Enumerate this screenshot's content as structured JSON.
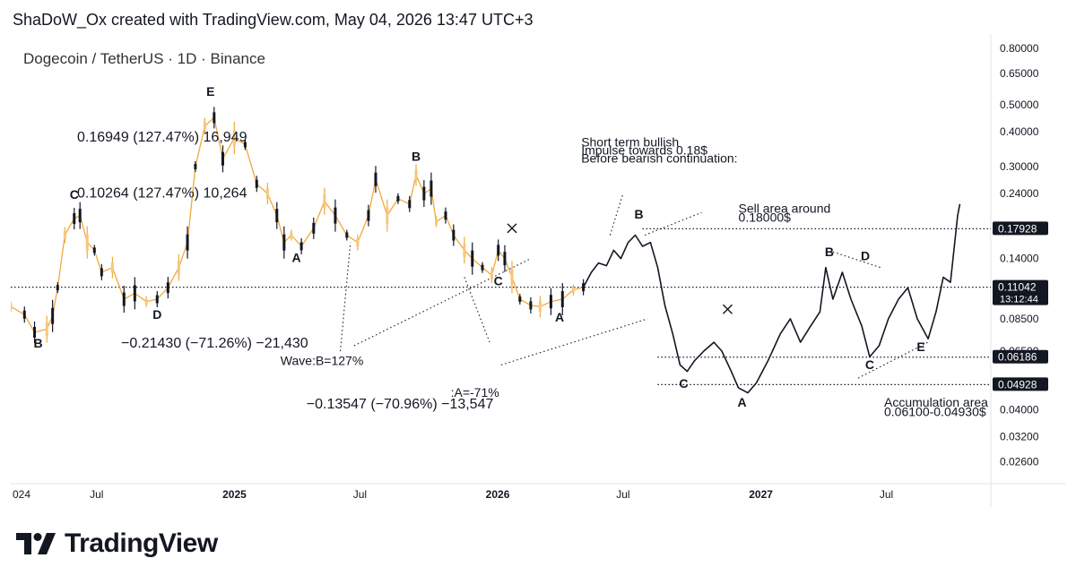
{
  "header": {
    "caption": "ShaDoW_Ox created with TradingView.com, May 04, 2026 13:47 UTC+3"
  },
  "chart_data": {
    "type": "line",
    "title": "Dogecoin / TetherUS · 1D · Binance",
    "y_scale": "log",
    "ylim": [
      0.022,
      0.9
    ],
    "xlim": [
      "2024-03-01",
      "2027-11-10"
    ],
    "x_tick_labels": [
      {
        "label": "024",
        "date": "2024-03-01"
      },
      {
        "label": "Jul",
        "date": "2024-07-01"
      },
      {
        "label": "2025",
        "date": "2025-01-01"
      },
      {
        "label": "Jul",
        "date": "2025-07-01"
      },
      {
        "label": "2026",
        "date": "2026-01-01"
      },
      {
        "label": "Jul",
        "date": "2026-07-01"
      },
      {
        "label": "2027",
        "date": "2027-01-01"
      },
      {
        "label": "Jul",
        "date": "2027-07-01"
      }
    ],
    "y_tick_labels": [
      "0.80000",
      "0.65000",
      "0.50000",
      "0.40000",
      "0.30000",
      "0.24000",
      "0.14000",
      "0.08500",
      "0.06500",
      "0.04000",
      "0.03200",
      "0.02600"
    ],
    "price_badges": [
      {
        "label": "0.17928",
        "value": 0.17928
      },
      {
        "label": "0.11042",
        "value": 0.11042,
        "sub": "13:12:44"
      },
      {
        "label": "0.06186",
        "value": 0.06186
      },
      {
        "label": "0.04928",
        "value": 0.04928
      }
    ],
    "horizontal_lines": [
      0.17928,
      0.11042,
      0.06186,
      0.04928
    ],
    "series": [
      {
        "kind": "historical candles",
        "color": "#f0a93b",
        "points": [
          [
            "2024-03-01",
            0.094
          ],
          [
            "2024-03-20",
            0.088
          ],
          [
            "2024-04-03",
            0.076
          ],
          [
            "2024-04-20",
            0.078
          ],
          [
            "2024-04-28",
            0.087
          ],
          [
            "2024-05-05",
            0.11
          ],
          [
            "2024-05-15",
            0.17
          ],
          [
            "2024-05-28",
            0.195
          ],
          [
            "2024-06-05",
            0.2
          ],
          [
            "2024-06-15",
            0.16
          ],
          [
            "2024-06-25",
            0.15
          ],
          [
            "2024-07-05",
            0.125
          ],
          [
            "2024-07-20",
            0.13
          ],
          [
            "2024-08-05",
            0.1
          ],
          [
            "2024-08-20",
            0.105
          ],
          [
            "2024-09-05",
            0.098
          ],
          [
            "2024-09-20",
            0.1
          ],
          [
            "2024-10-05",
            0.11
          ],
          [
            "2024-10-20",
            0.13
          ],
          [
            "2024-11-01",
            0.16
          ],
          [
            "2024-11-12",
            0.3
          ],
          [
            "2024-11-25",
            0.42
          ],
          [
            "2024-12-08",
            0.45
          ],
          [
            "2024-12-20",
            0.32
          ],
          [
            "2025-01-05",
            0.38
          ],
          [
            "2025-01-20",
            0.36
          ],
          [
            "2025-02-05",
            0.26
          ],
          [
            "2025-02-20",
            0.24
          ],
          [
            "2025-03-05",
            0.2
          ],
          [
            "2025-03-15",
            0.16
          ],
          [
            "2025-03-25",
            0.17
          ],
          [
            "2025-04-08",
            0.155
          ],
          [
            "2025-04-25",
            0.18
          ],
          [
            "2025-05-10",
            0.225
          ],
          [
            "2025-05-25",
            0.2
          ],
          [
            "2025-06-10",
            0.17
          ],
          [
            "2025-06-25",
            0.16
          ],
          [
            "2025-07-10",
            0.2
          ],
          [
            "2025-07-20",
            0.27
          ],
          [
            "2025-08-05",
            0.2
          ],
          [
            "2025-08-20",
            0.23
          ],
          [
            "2025-09-05",
            0.22
          ],
          [
            "2025-09-14",
            0.28
          ],
          [
            "2025-09-25",
            0.24
          ],
          [
            "2025-10-05",
            0.25
          ],
          [
            "2025-10-12",
            0.19
          ],
          [
            "2025-10-25",
            0.2
          ],
          [
            "2025-11-05",
            0.17
          ],
          [
            "2025-11-20",
            0.15
          ],
          [
            "2025-12-01",
            0.14
          ],
          [
            "2025-12-15",
            0.13
          ],
          [
            "2025-12-28",
            0.122
          ],
          [
            "2026-01-06",
            0.15
          ],
          [
            "2026-01-15",
            0.14
          ],
          [
            "2026-01-25",
            0.12
          ],
          [
            "2026-02-05",
            0.1
          ],
          [
            "2026-02-20",
            0.095
          ],
          [
            "2026-03-05",
            0.094
          ],
          [
            "2026-03-20",
            0.098
          ],
          [
            "2026-04-05",
            0.1
          ],
          [
            "2026-04-20",
            0.108
          ],
          [
            "2026-05-04",
            0.11042
          ]
        ]
      },
      {
        "kind": "projected path",
        "color": "#131722",
        "points": [
          [
            "2026-05-04",
            0.11042
          ],
          [
            "2026-05-15",
            0.125
          ],
          [
            "2026-05-25",
            0.135
          ],
          [
            "2026-06-05",
            0.132
          ],
          [
            "2026-06-15",
            0.15
          ],
          [
            "2026-06-25",
            0.14
          ],
          [
            "2026-07-05",
            0.16
          ],
          [
            "2026-07-15",
            0.17
          ],
          [
            "2026-07-25",
            0.155
          ],
          [
            "2026-08-05",
            0.16
          ],
          [
            "2026-08-15",
            0.13
          ],
          [
            "2026-08-25",
            0.095
          ],
          [
            "2026-09-05",
            0.075
          ],
          [
            "2026-09-15",
            0.058
          ],
          [
            "2026-09-25",
            0.055
          ],
          [
            "2026-10-05",
            0.06
          ],
          [
            "2026-10-18",
            0.065
          ],
          [
            "2026-11-01",
            0.07
          ],
          [
            "2026-11-12",
            0.065
          ],
          [
            "2026-11-25",
            0.055
          ],
          [
            "2026-12-05",
            0.048
          ],
          [
            "2026-12-18",
            0.046
          ],
          [
            "2026-12-30",
            0.05
          ],
          [
            "2027-01-15",
            0.06
          ],
          [
            "2027-02-01",
            0.075
          ],
          [
            "2027-02-15",
            0.085
          ],
          [
            "2027-03-01",
            0.07
          ],
          [
            "2027-03-15",
            0.08
          ],
          [
            "2027-03-28",
            0.09
          ],
          [
            "2027-04-05",
            0.13
          ],
          [
            "2027-04-15",
            0.1
          ],
          [
            "2027-04-28",
            0.125
          ],
          [
            "2027-05-10",
            0.1
          ],
          [
            "2027-05-25",
            0.08
          ],
          [
            "2027-06-05",
            0.062
          ],
          [
            "2027-06-18",
            0.068
          ],
          [
            "2027-07-01",
            0.085
          ],
          [
            "2027-07-15",
            0.1
          ],
          [
            "2027-07-28",
            0.11
          ],
          [
            "2027-08-10",
            0.085
          ],
          [
            "2027-08-25",
            0.072
          ],
          [
            "2027-09-05",
            0.09
          ],
          [
            "2027-09-15",
            0.12
          ],
          [
            "2027-09-25",
            0.115
          ],
          [
            "2027-10-05",
            0.2
          ],
          [
            "2027-10-08",
            0.22
          ]
        ]
      }
    ],
    "wave_labels": [
      {
        "text": "B",
        "date": "2024-04-08",
        "price": 0.067
      },
      {
        "text": "C",
        "date": "2024-05-28",
        "price": 0.23
      },
      {
        "text": "D",
        "date": "2024-09-20",
        "price": 0.085
      },
      {
        "text": "E",
        "date": "2024-12-03",
        "price": 0.54
      },
      {
        "text": "A",
        "date": "2025-04-01",
        "price": 0.136
      },
      {
        "text": "B",
        "date": "2025-09-14",
        "price": 0.315
      },
      {
        "text": "C",
        "date": "2026-01-06",
        "price": 0.112
      },
      {
        "text": "A",
        "date": "2026-04-01",
        "price": 0.083
      },
      {
        "text": "B",
        "date": "2026-07-20",
        "price": 0.195
      },
      {
        "text": "C",
        "date": "2026-09-20",
        "price": 0.048
      },
      {
        "text": "A",
        "date": "2026-12-10",
        "price": 0.041
      },
      {
        "text": "B",
        "date": "2027-04-10",
        "price": 0.143
      },
      {
        "text": "D",
        "date": "2027-05-30",
        "price": 0.138
      },
      {
        "text": "C",
        "date": "2027-06-05",
        "price": 0.056
      },
      {
        "text": "E",
        "date": "2027-08-15",
        "price": 0.065
      }
    ],
    "cross_markers": [
      {
        "date": "2026-01-25",
        "price": 0.18
      },
      {
        "date": "2026-11-20",
        "price": 0.092
      }
    ],
    "annotations": [
      {
        "text": "0.16949 (127.47%) 16,949",
        "date": "2024-06-01",
        "price": 0.37
      },
      {
        "text": "0.10264 (127.47%) 10,264",
        "date": "2024-06-01",
        "price": 0.232
      },
      {
        "text": "−0.21430 (−71.26%) −21,430",
        "date": "2024-08-01",
        "price": 0.067
      },
      {
        "text": "Wave:B=127%",
        "date": "2025-03-10",
        "price": 0.058
      },
      {
        "text": ":A=-71%",
        "date": "2025-11-01",
        "price": 0.0445
      },
      {
        "text": "−0.13547 (−70.96%) −13,547",
        "date": "2025-04-15",
        "price": 0.0405
      },
      {
        "text": "Short term bullish",
        "date": "2026-05-01",
        "price": 0.355
      },
      {
        "text": "Impulse towards 0.18$",
        "date": "2026-05-01",
        "price": 0.332
      },
      {
        "text": "Before bearish continuation:",
        "date": "2026-05-01",
        "price": 0.31
      },
      {
        "text": "Sell area around",
        "date": "2026-12-05",
        "price": 0.205
      },
      {
        "text": "0.18000$",
        "date": "2026-12-05",
        "price": 0.19
      },
      {
        "text": "Accumulation area",
        "date": "2027-06-25",
        "price": 0.041
      },
      {
        "text": "0.06100-0.04930$",
        "date": "2027-06-25",
        "price": 0.038
      }
    ],
    "dotted_guides": [
      [
        [
          "2025-06-01",
          0.065
        ],
        [
          "2025-06-15",
          0.16
        ]
      ],
      [
        [
          "2025-06-20",
          0.068
        ],
        [
          "2026-02-20",
          0.14
        ]
      ],
      [
        [
          "2025-11-20",
          0.12
        ],
        [
          "2025-12-25",
          0.07
        ]
      ],
      [
        [
          "2026-01-10",
          0.058
        ],
        [
          "2026-08-01",
          0.085
        ]
      ],
      [
        [
          "2026-06-10",
          0.17
        ],
        [
          "2026-06-28",
          0.24
        ]
      ],
      [
        [
          "2026-07-28",
          0.17
        ],
        [
          "2026-10-15",
          0.205
        ]
      ],
      [
        [
          "2027-04-15",
          0.148
        ],
        [
          "2027-06-20",
          0.13
        ]
      ],
      [
        [
          "2027-05-20",
          0.052
        ],
        [
          "2027-08-25",
          0.07
        ]
      ]
    ]
  },
  "footer": {
    "logo_text": "TradingView"
  }
}
